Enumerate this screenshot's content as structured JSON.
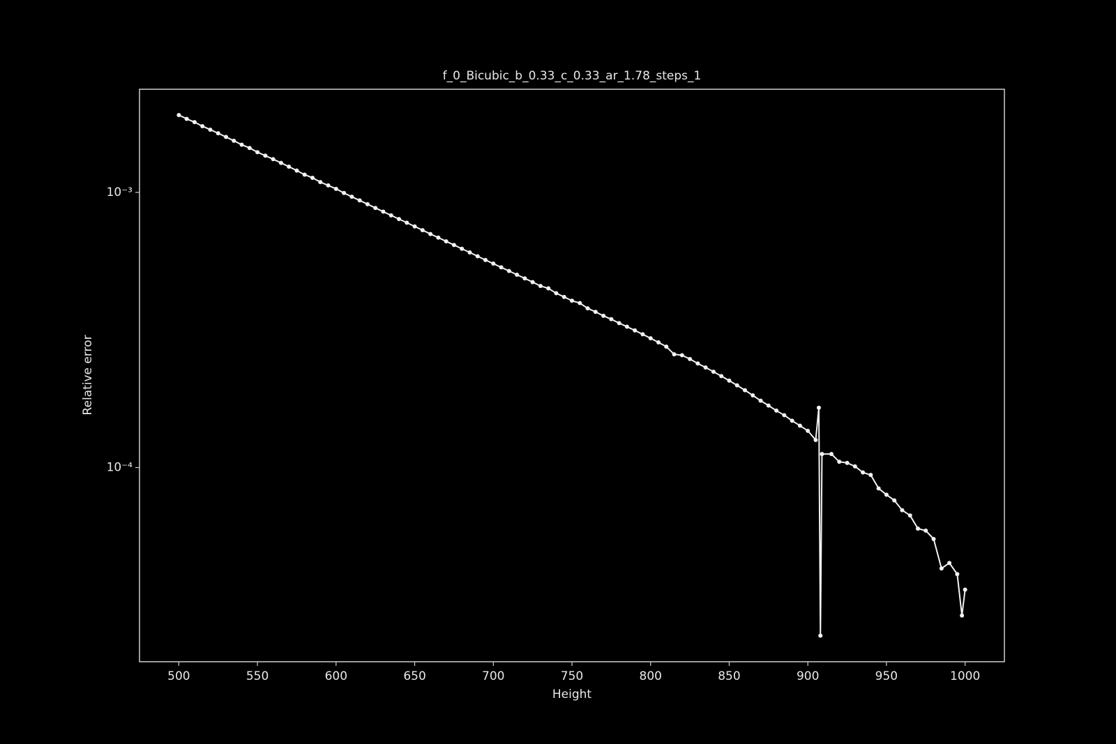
{
  "chart_data": {
    "type": "line",
    "title": "f_0_Bicubic_b_0.33_c_0.33_ar_1.78_steps_1",
    "x_label": "Height",
    "y_label": "Relative error",
    "y_scale": "log",
    "x": [
      500,
      505,
      510,
      515,
      520,
      525,
      530,
      535,
      540,
      545,
      550,
      555,
      560,
      565,
      570,
      575,
      580,
      585,
      590,
      595,
      600,
      605,
      610,
      615,
      620,
      625,
      630,
      635,
      640,
      645,
      650,
      655,
      660,
      665,
      670,
      675,
      680,
      685,
      690,
      695,
      700,
      705,
      710,
      715,
      720,
      725,
      730,
      735,
      740,
      745,
      750,
      755,
      760,
      765,
      770,
      775,
      780,
      785,
      790,
      795,
      800,
      805,
      810,
      815,
      820,
      825,
      830,
      835,
      840,
      845,
      850,
      855,
      860,
      865,
      870,
      875,
      880,
      885,
      890,
      895,
      900,
      905,
      907,
      908,
      909,
      915,
      920,
      925,
      930,
      935,
      940,
      945,
      950,
      955,
      960,
      965,
      970,
      975,
      980,
      985,
      990,
      995,
      998,
      1000
    ],
    "series": [
      {
        "color": "#f2f2f2",
        "values": [
          0.00191,
          0.00185,
          0.0018,
          0.00174,
          0.00169,
          0.00164,
          0.00159,
          0.00154,
          0.00149,
          0.00145,
          0.0014,
          0.00136,
          0.00132,
          0.00128,
          0.00124,
          0.0012,
          0.00116,
          0.00113,
          0.00109,
          0.00106,
          0.00103,
          0.000995,
          0.000964,
          0.000935,
          0.000906,
          0.000878,
          0.000851,
          0.000825,
          0.0008,
          0.000776,
          0.000752,
          0.000729,
          0.000706,
          0.000685,
          0.000664,
          0.000644,
          0.000624,
          0.000605,
          0.000586,
          0.000568,
          0.000551,
          0.000534,
          0.000518,
          0.000502,
          0.000487,
          0.000472,
          0.000457,
          0.000448,
          0.00043,
          0.000417,
          0.000404,
          0.000396,
          0.000379,
          0.000368,
          0.000356,
          0.000346,
          0.000335,
          0.000325,
          0.000315,
          0.000305,
          0.000295,
          0.000285,
          0.000275,
          0.000258,
          0.000256,
          0.000248,
          0.000239,
          0.000231,
          0.000223,
          0.000215,
          0.000207,
          0.000199,
          0.000191,
          0.000183,
          0.000175,
          0.000168,
          0.000161,
          0.000155,
          0.000148,
          0.000142,
          0.000136,
          0.000126,
          0.000165,
          2.45e-05,
          0.000112,
          0.000112,
          0.000105,
          0.000104,
          0.000101,
          9.6e-05,
          9.4e-05,
          8.4e-05,
          7.97e-05,
          7.6e-05,
          7e-05,
          6.7e-05,
          6e-05,
          5.9e-05,
          5.5e-05,
          4.3e-05,
          4.5e-05,
          4.1e-05,
          2.9e-05,
          3.6e-05
        ]
      }
    ],
    "xlim": [
      475,
      1025
    ],
    "xticks": [
      500,
      550,
      600,
      650,
      700,
      750,
      800,
      850,
      900,
      950,
      1000
    ],
    "ylim": [
      1.97e-05,
      0.00237
    ],
    "yticks": [
      {
        "value": 0.001,
        "label": "10⁻³"
      },
      {
        "value": 0.0001,
        "label": "10⁻⁴"
      }
    ]
  }
}
